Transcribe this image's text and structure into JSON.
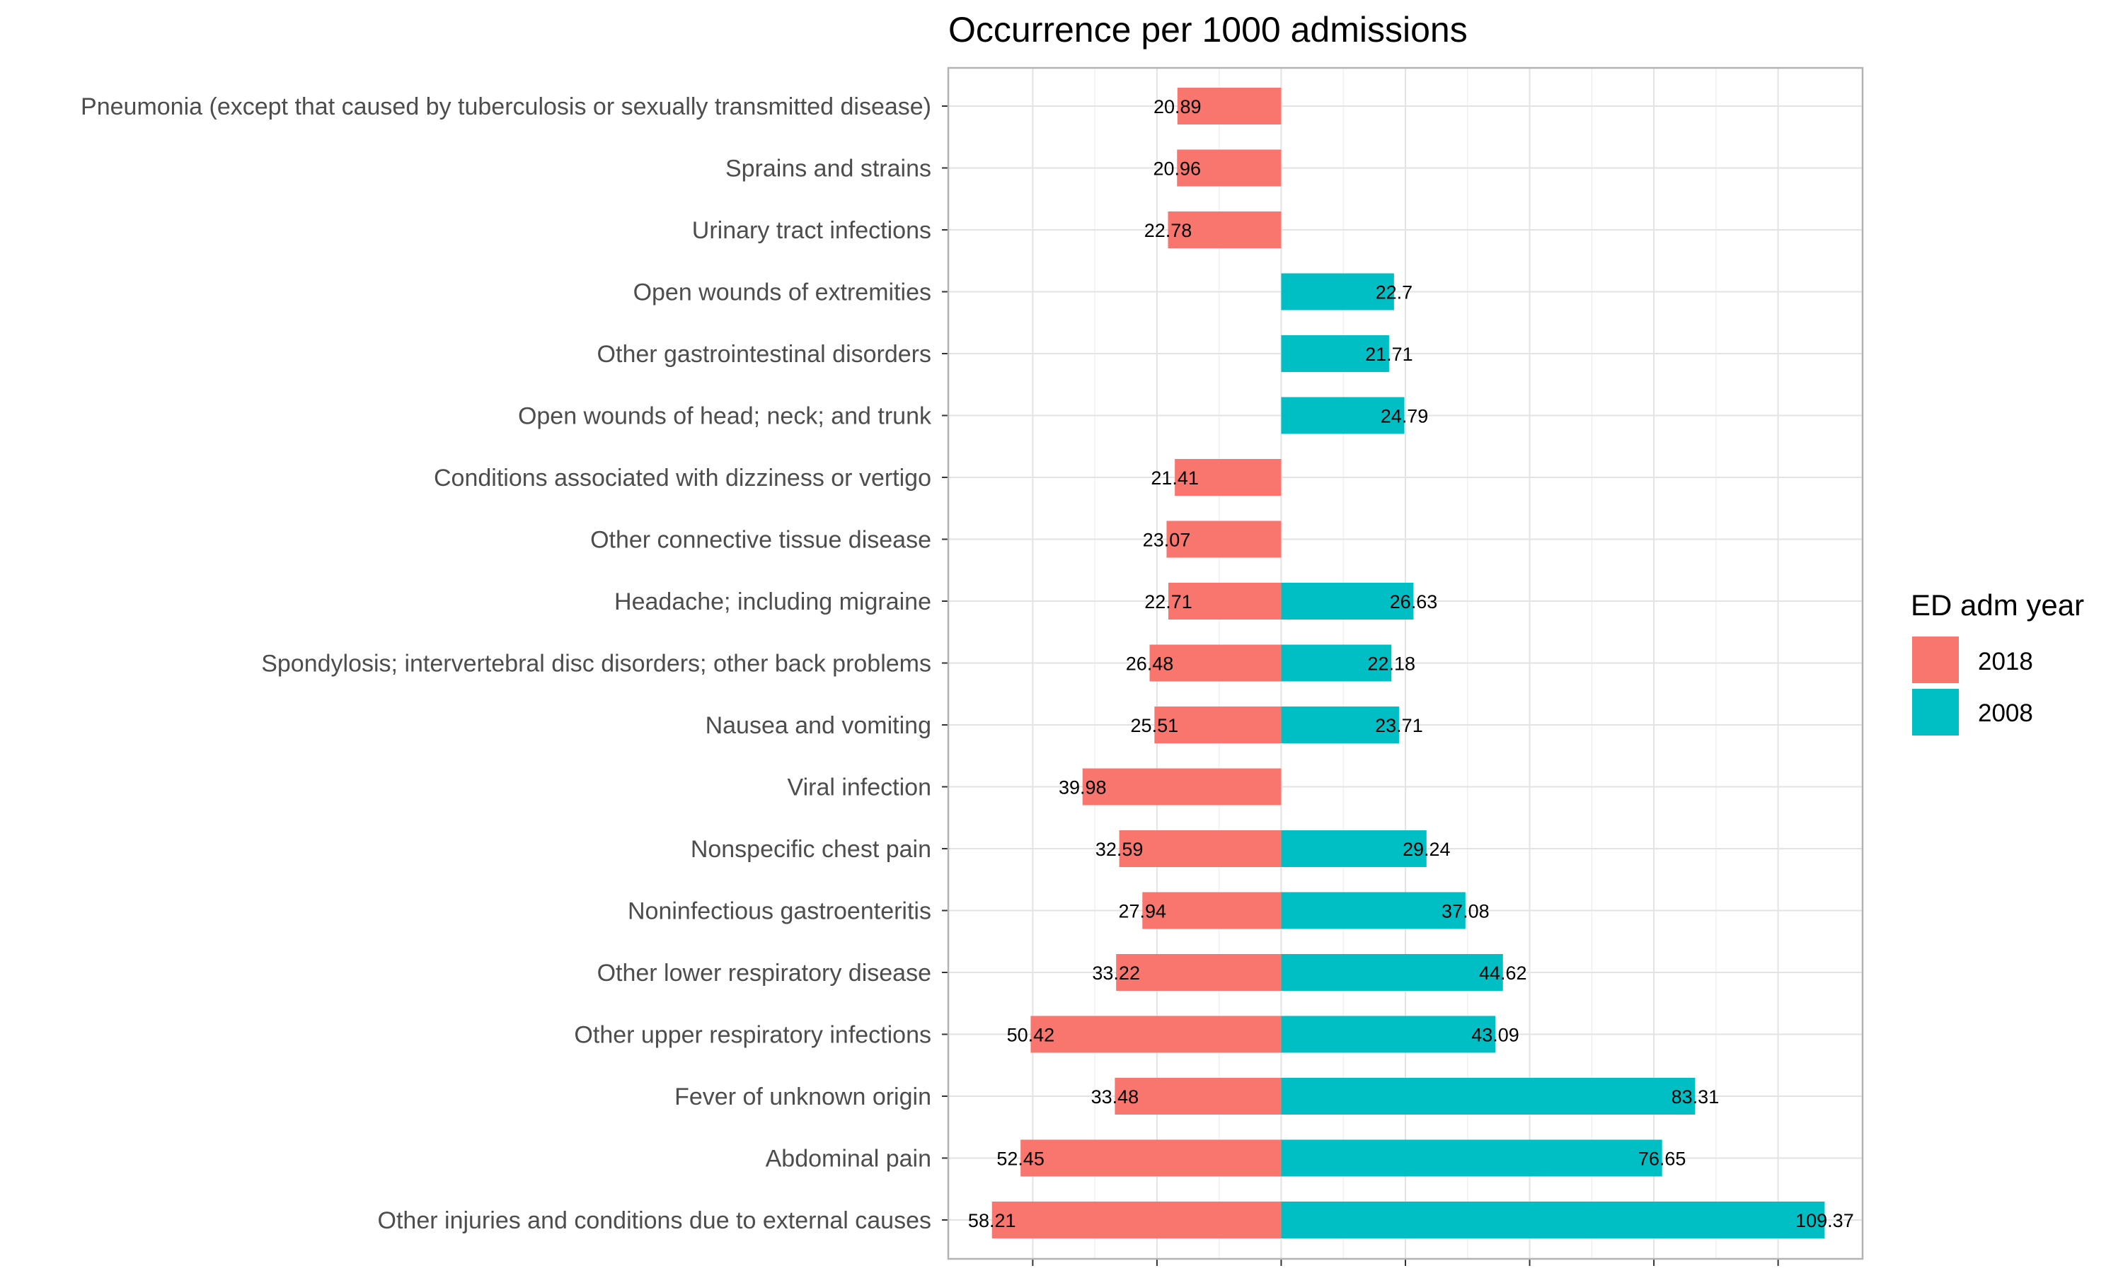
{
  "chart_data": {
    "type": "bar",
    "orientation": "horizontal",
    "layout": "diverging",
    "title": "Occurrence per 1000 admissions",
    "categories": [
      "Pneumonia (except that caused by tuberculosis or sexually transmitted disease)",
      "Sprains and strains",
      "Urinary tract infections",
      "Open wounds of extremities",
      "Other gastrointestinal disorders",
      "Open wounds of head; neck; and trunk",
      "Conditions associated with dizziness or vertigo",
      "Other connective tissue disease",
      "Headache; including migraine",
      "Spondylosis; intervertebral disc disorders; other back problems",
      "Nausea and vomiting",
      "Viral infection",
      "Nonspecific chest pain",
      "Noninfectious gastroenteritis",
      "Other lower respiratory disease",
      "Other upper respiratory infections",
      "Fever of unknown origin",
      "Abdominal pain",
      "Other injuries and conditions due to external causes"
    ],
    "series": [
      {
        "name": "2018",
        "color": "#F8766D",
        "direction": "left",
        "values": [
          20.89,
          20.96,
          22.78,
          null,
          null,
          null,
          21.41,
          23.07,
          22.71,
          26.48,
          25.51,
          39.98,
          32.59,
          27.94,
          33.22,
          50.42,
          33.48,
          52.45,
          58.21
        ]
      },
      {
        "name": "2008",
        "color": "#00BFC4",
        "direction": "right",
        "values": [
          null,
          null,
          null,
          22.7,
          21.71,
          24.79,
          null,
          null,
          26.63,
          22.18,
          23.71,
          null,
          29.24,
          37.08,
          44.62,
          43.09,
          83.31,
          76.65,
          109.37
        ]
      }
    ],
    "value_labels": [
      [
        "20.89",
        null
      ],
      [
        "20.96",
        null
      ],
      [
        "22.78",
        null
      ],
      [
        null,
        "22.7"
      ],
      [
        null,
        "21.71"
      ],
      [
        null,
        "24.79"
      ],
      [
        "21.41",
        null
      ],
      [
        "23.07",
        null
      ],
      [
        "22.71",
        "26.63"
      ],
      [
        "26.48",
        "22.18"
      ],
      [
        "25.51",
        "23.71"
      ],
      [
        "39.98",
        null
      ],
      [
        "32.59",
        "29.24"
      ],
      [
        "27.94",
        "37.08"
      ],
      [
        "33.22",
        "44.62"
      ],
      [
        "50.42",
        "43.09"
      ],
      [
        "33.48",
        "83.31"
      ],
      [
        "52.45",
        "76.65"
      ],
      [
        "58.21",
        "109.37"
      ]
    ],
    "xlim": [
      -67,
      117
    ],
    "x_gridlines": [
      -50,
      -25,
      0,
      25,
      50,
      75,
      100
    ],
    "tick_labels_visible": false,
    "grid": true,
    "legend": {
      "title": "ED adm year",
      "position": "right",
      "entries": [
        "2018",
        "2008"
      ]
    }
  }
}
